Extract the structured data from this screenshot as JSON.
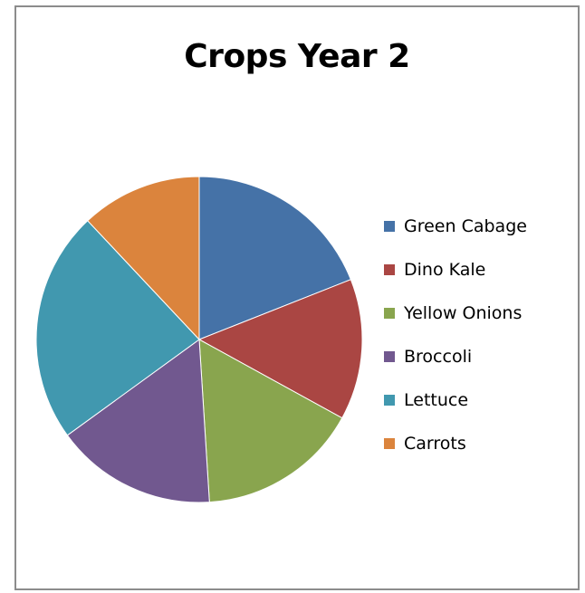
{
  "chart_data": {
    "type": "pie",
    "title": "Crops Year 2",
    "categories": [
      "Green Cabage",
      "Dino Kale",
      "Yellow Onions",
      "Broccoli",
      "Lettuce",
      "Carrots"
    ],
    "values": [
      19,
      14,
      16,
      16,
      23,
      12
    ],
    "colors": [
      "#4572a7",
      "#aa4643",
      "#89a54e",
      "#71588f",
      "#4198af",
      "#db843d"
    ],
    "legend_position": "right",
    "start_angle": "12 o'clock, clockwise"
  }
}
